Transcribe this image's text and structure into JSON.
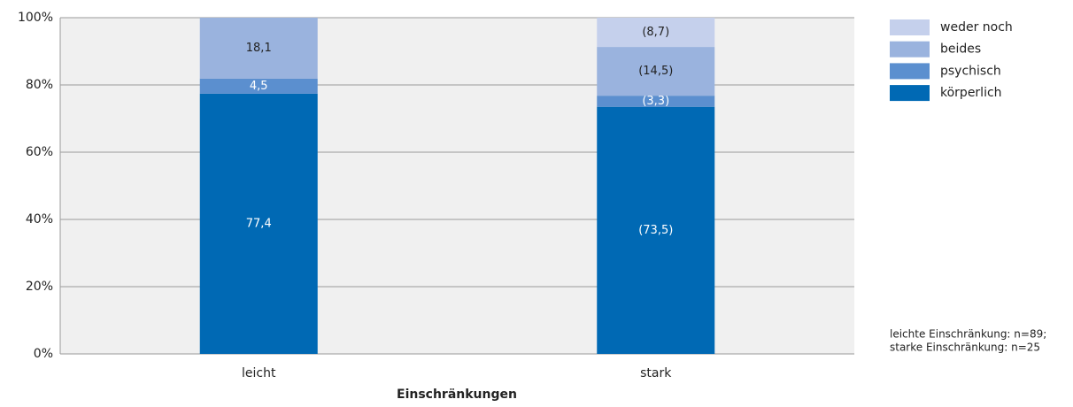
{
  "chart_data": {
    "type": "stacked_bar",
    "x_label": "Einschränkungen",
    "categories": [
      "leicht",
      "stark"
    ],
    "series": [
      {
        "name": "körperlich",
        "color": "#0069b4",
        "label_color": "#ffffff",
        "values": [
          77.4,
          73.5
        ],
        "value_labels": [
          "77,4",
          "(73,5)"
        ]
      },
      {
        "name": "psychisch",
        "color": "#5b8fcf",
        "label_color": "#ffffff",
        "values": [
          4.5,
          3.3
        ],
        "value_labels": [
          "4,5",
          "(3,3)"
        ]
      },
      {
        "name": "beides",
        "color": "#9ab3de",
        "label_color": "#222222",
        "values": [
          18.1,
          14.5
        ],
        "value_labels": [
          "18,1",
          "(14,5)"
        ]
      },
      {
        "name": "weder noch",
        "color": "#c5d0ec",
        "label_color": "#222222",
        "values": [
          null,
          8.7
        ],
        "value_labels": [
          null,
          "(8,7)"
        ]
      }
    ],
    "ylim": [
      0,
      100
    ],
    "yticks": [
      {
        "value": 0,
        "label": "0%"
      },
      {
        "value": 20,
        "label": "20%"
      },
      {
        "value": 40,
        "label": "40%"
      },
      {
        "value": 60,
        "label": "60%"
      },
      {
        "value": 80,
        "label": "80%"
      },
      {
        "value": 100,
        "label": "100%"
      }
    ],
    "grid": true,
    "legend": "right",
    "notes": [
      "leichte Einschränkung: n=89;",
      "starke Einschränkung: n=25"
    ]
  }
}
